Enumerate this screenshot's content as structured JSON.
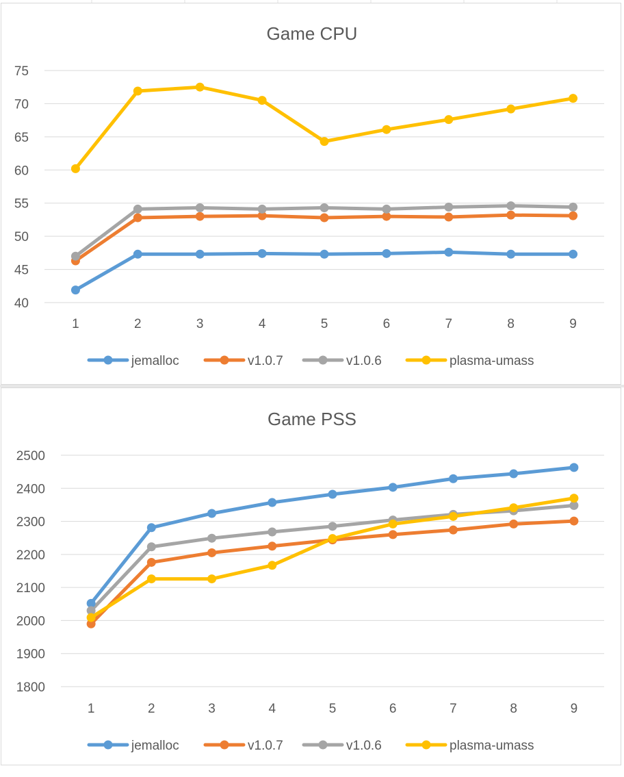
{
  "colors": {
    "jemalloc": "#5b9bd5",
    "v1.0.7": "#ed7d31",
    "v1.0.6": "#a5a5a5",
    "plasma-umass": "#ffc000",
    "gridline": "#d9d9d9",
    "text": "#595959"
  },
  "chart_data": [
    {
      "type": "line",
      "title": "Game CPU",
      "xlabel": "",
      "ylabel": "",
      "categories": [
        "1",
        "2",
        "3",
        "4",
        "5",
        "6",
        "7",
        "8",
        "9"
      ],
      "ylim": [
        40,
        75
      ],
      "yticks": [
        40,
        45,
        50,
        55,
        60,
        65,
        70,
        75
      ],
      "grid": true,
      "legend_position": "bottom",
      "markers": true,
      "series": [
        {
          "name": "jemalloc",
          "values": [
            41.9,
            47.3,
            47.3,
            47.4,
            47.3,
            47.4,
            47.6,
            47.3,
            47.3
          ]
        },
        {
          "name": "v1.0.7",
          "values": [
            46.3,
            52.8,
            53.0,
            53.1,
            52.8,
            53.0,
            52.9,
            53.2,
            53.1
          ]
        },
        {
          "name": "v1.0.6",
          "values": [
            47.0,
            54.1,
            54.3,
            54.1,
            54.3,
            54.1,
            54.4,
            54.6,
            54.4
          ]
        },
        {
          "name": "plasma-umass",
          "values": [
            60.2,
            71.9,
            72.5,
            70.5,
            64.3,
            66.1,
            67.6,
            69.2,
            70.8
          ]
        }
      ]
    },
    {
      "type": "line",
      "title": "Game PSS",
      "xlabel": "",
      "ylabel": "",
      "categories": [
        "1",
        "2",
        "3",
        "4",
        "5",
        "6",
        "7",
        "8",
        "9"
      ],
      "ylim": [
        1800,
        2500
      ],
      "yticks": [
        1800,
        1900,
        2000,
        2100,
        2200,
        2300,
        2400,
        2500
      ],
      "grid": true,
      "legend_position": "bottom",
      "markers": true,
      "series": [
        {
          "name": "jemalloc",
          "values": [
            2052,
            2281,
            2324,
            2357,
            2382,
            2403,
            2429,
            2444,
            2463
          ]
        },
        {
          "name": "v1.0.7",
          "values": [
            1990,
            2176,
            2205,
            2225,
            2244,
            2260,
            2274,
            2292,
            2301
          ]
        },
        {
          "name": "v1.0.6",
          "values": [
            2030,
            2223,
            2249,
            2268,
            2285,
            2304,
            2321,
            2332,
            2348
          ]
        },
        {
          "name": "plasma-umass",
          "values": [
            2009,
            2126,
            2126,
            2167,
            2248,
            2292,
            2315,
            2341,
            2370
          ]
        }
      ]
    }
  ]
}
